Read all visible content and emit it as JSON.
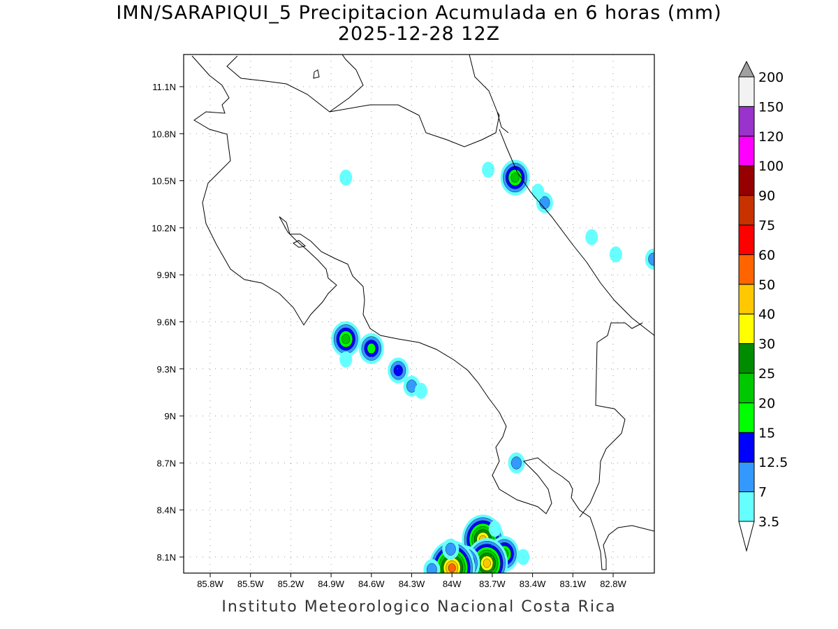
{
  "title": "IMN/SARAPIQUI_5 Precipitacion Acumulada en 6 horas (mm)",
  "subtitle": "2025-12-28 12Z",
  "footer": "Instituto Meteorologico Nacional Costa Rica",
  "chart_data": {
    "type": "heatmap",
    "title": "IMN/SARAPIQUI_5 Precipitacion Acumulada en 6 horas (mm)",
    "valid_time": "2025-12-28 12Z",
    "units": "mm",
    "lon_range": [
      -86.0,
      -82.5
    ],
    "lat_range": [
      8.0,
      11.3
    ],
    "x_ticks": [
      {
        "value": -85.8,
        "label": "85.8W"
      },
      {
        "value": -85.5,
        "label": "85.5W"
      },
      {
        "value": -85.2,
        "label": "85.2W"
      },
      {
        "value": -84.9,
        "label": "84.9W"
      },
      {
        "value": -84.6,
        "label": "84.6W"
      },
      {
        "value": -84.3,
        "label": "84.3W"
      },
      {
        "value": -84.0,
        "label": "84W"
      },
      {
        "value": -83.7,
        "label": "83.7W"
      },
      {
        "value": -83.4,
        "label": "83.4W"
      },
      {
        "value": -83.1,
        "label": "83.1W"
      },
      {
        "value": -82.8,
        "label": "82.8W"
      }
    ],
    "y_ticks": [
      {
        "value": 11.1,
        "label": "11.1N"
      },
      {
        "value": 10.8,
        "label": "10.8N"
      },
      {
        "value": 10.5,
        "label": "10.5N"
      },
      {
        "value": 10.2,
        "label": "10.2N"
      },
      {
        "value": 9.9,
        "label": "9.9N"
      },
      {
        "value": 9.6,
        "label": "9.6N"
      },
      {
        "value": 9.3,
        "label": "9.3N"
      },
      {
        "value": 9.0,
        "label": "9N"
      },
      {
        "value": 8.7,
        "label": "8.7N"
      },
      {
        "value": 8.4,
        "label": "8.4N"
      },
      {
        "value": 8.1,
        "label": "8.1N"
      }
    ],
    "grid": true,
    "colorbar": {
      "placement": "right",
      "levels": [
        "3.5",
        "7",
        "12.5",
        "15",
        "20",
        "25",
        "30",
        "40",
        "50",
        "60",
        "75",
        "90",
        "100",
        "120",
        "150",
        "200"
      ],
      "colors": [
        "#66ffff",
        "#3399ff",
        "#0000ff",
        "#00ff00",
        "#00c800",
        "#008c00",
        "#ffff00",
        "#ffc800",
        "#ff6400",
        "#ff0000",
        "#c83200",
        "#960000",
        "#ff00ff",
        "#9933cc",
        "#f2f2f2"
      ],
      "over_color": "#a0a0a0",
      "under_color": "#ffffff"
    },
    "cells": [
      {
        "lon": -83.53,
        "lat": 10.52,
        "max": 20
      },
      {
        "lon": -83.73,
        "lat": 10.57,
        "max": 3.5
      },
      {
        "lon": -83.31,
        "lat": 10.36,
        "max": 7
      },
      {
        "lon": -83.36,
        "lat": 10.43,
        "max": 3.5
      },
      {
        "lon": -82.96,
        "lat": 10.14,
        "max": 3.5
      },
      {
        "lon": -82.78,
        "lat": 10.03,
        "max": 3.5
      },
      {
        "lon": -82.5,
        "lat": 10.0,
        "max": 7
      },
      {
        "lon": -84.79,
        "lat": 10.52,
        "max": 3.5
      },
      {
        "lon": -84.79,
        "lat": 9.49,
        "max": 20
      },
      {
        "lon": -84.79,
        "lat": 9.36,
        "max": 3.5
      },
      {
        "lon": -84.6,
        "lat": 9.43,
        "max": 15
      },
      {
        "lon": -84.4,
        "lat": 9.29,
        "max": 12.5
      },
      {
        "lon": -84.3,
        "lat": 9.19,
        "max": 7
      },
      {
        "lon": -84.23,
        "lat": 9.16,
        "max": 3.5
      },
      {
        "lon": -83.52,
        "lat": 8.7,
        "max": 7
      },
      {
        "lon": -83.77,
        "lat": 8.21,
        "max": 40
      },
      {
        "lon": -83.68,
        "lat": 8.28,
        "max": 3.5
      },
      {
        "lon": -83.61,
        "lat": 8.12,
        "max": 20
      },
      {
        "lon": -83.74,
        "lat": 8.06,
        "max": 40
      },
      {
        "lon": -83.9,
        "lat": 8.06,
        "max": 20
      },
      {
        "lon": -84.0,
        "lat": 8.03,
        "max": 50
      },
      {
        "lon": -84.01,
        "lat": 8.15,
        "max": 7
      },
      {
        "lon": -84.15,
        "lat": 8.02,
        "max": 7
      },
      {
        "lon": -83.47,
        "lat": 8.1,
        "max": 3.5
      }
    ]
  }
}
